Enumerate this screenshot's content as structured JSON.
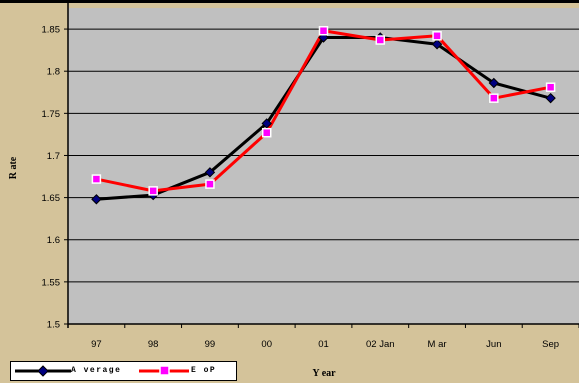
{
  "chart_data": {
    "type": "line",
    "categories": [
      "97",
      "98",
      "99",
      "00",
      "01",
      "02 Jan",
      "M ar",
      "Jun",
      "Sep"
    ],
    "series": [
      {
        "name": "A verage",
        "color": "#000000",
        "marker": "diamond",
        "marker_color": "#000080",
        "values": [
          1.648,
          1.653,
          1.68,
          1.738,
          1.84,
          1.84,
          1.832,
          1.786,
          1.768
        ]
      },
      {
        "name": "E oP",
        "color": "#ff0000",
        "marker": "square",
        "marker_color": "#ff00ff",
        "values": [
          1.672,
          1.658,
          1.666,
          1.727,
          1.848,
          1.837,
          1.842,
          1.768,
          1.781
        ]
      }
    ],
    "ylim": [
      1.5,
      1.875
    ],
    "yticks": [
      1.5,
      1.55,
      1.6,
      1.65,
      1.7,
      1.75,
      1.8,
      1.85
    ],
    "ytick_labels": [
      "1.5",
      "1.55",
      "1.6",
      "1.65",
      "1.7",
      "1.75",
      "1.8",
      "1.85"
    ],
    "xlabel": "Y ear",
    "ylabel": "R ate",
    "plot_background": "#c0c0c0",
    "page_background": "#d4c39a",
    "grid": {
      "y": true,
      "x": false
    },
    "legend_position": "bottom-left"
  }
}
